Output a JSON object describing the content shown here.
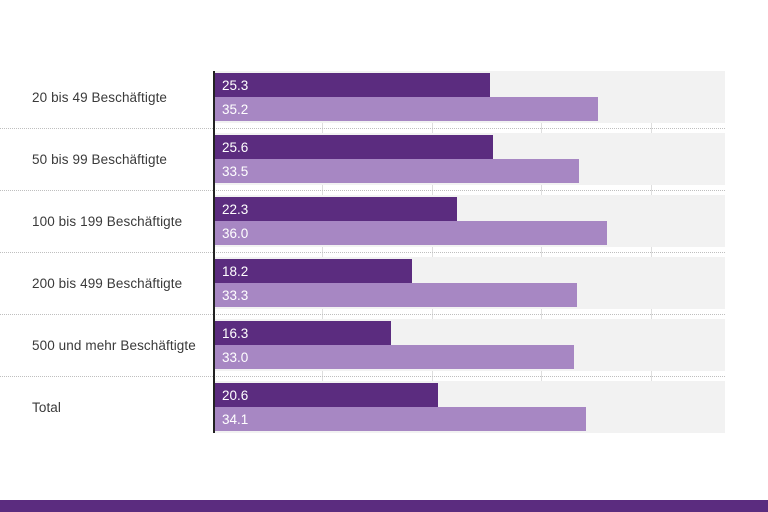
{
  "chart_data": {
    "type": "bar",
    "orientation": "horizontal",
    "title": "",
    "xlabel": "",
    "ylabel": "",
    "categories": [
      "20 bis 49 Beschäftigte",
      "50 bis 99 Beschäftigte",
      "100 bis 199 Beschäftigte",
      "200 bis 499 Beschäftigte",
      "500 und mehr Beschäftigte",
      "Total"
    ],
    "series": [
      {
        "name": "",
        "color": "#5b2c7f",
        "values": [
          25.3,
          25.6,
          22.3,
          18.2,
          16.3,
          20.6
        ]
      },
      {
        "name": "",
        "color": "#a787c3",
        "values": [
          35.2,
          33.5,
          36.0,
          33.3,
          33.0,
          34.1
        ]
      }
    ],
    "xlim": [
      0,
      46.8
    ],
    "gridlines": [
      10,
      20,
      30,
      40
    ],
    "grid": true,
    "legend": false,
    "value_labels": "inside bar, left aligned, one decimal, white"
  },
  "colors": {
    "series_dark": "#5b2c7f",
    "series_light": "#a787c3",
    "row_background": "#f2f2f2",
    "gridline": "#dedede",
    "separator": "#bfbfbf",
    "axis_line": "#222222",
    "category_text": "#3a3a3a",
    "value_text": "#ffffff",
    "footer_bar": "#5b2c7f",
    "page_background": "#ffffff"
  }
}
